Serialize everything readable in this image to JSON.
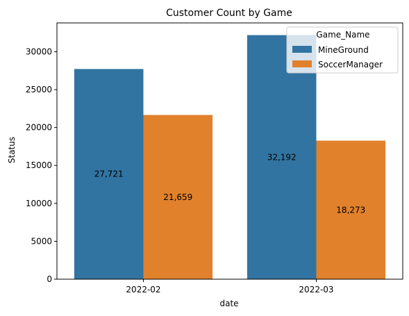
{
  "chart_data": {
    "type": "bar",
    "title": "Customer Count by Game",
    "xlabel": "date",
    "ylabel": "Status",
    "categories": [
      "2022-02",
      "2022-03"
    ],
    "series": [
      {
        "name": "MineGround",
        "values": [
          27721,
          32192
        ],
        "labels": [
          "27,721",
          "32,192"
        ],
        "color": "#3274a1"
      },
      {
        "name": "SoccerManager",
        "values": [
          21659,
          18273
        ],
        "labels": [
          "21,659",
          "18,273"
        ],
        "color": "#e1812c"
      }
    ],
    "ylim": [
      0,
      33800
    ],
    "yticks": [
      0,
      5000,
      10000,
      15000,
      20000,
      25000,
      30000
    ],
    "grid": false,
    "legend": {
      "title": "Game_Name",
      "placement": "top-right"
    }
  }
}
